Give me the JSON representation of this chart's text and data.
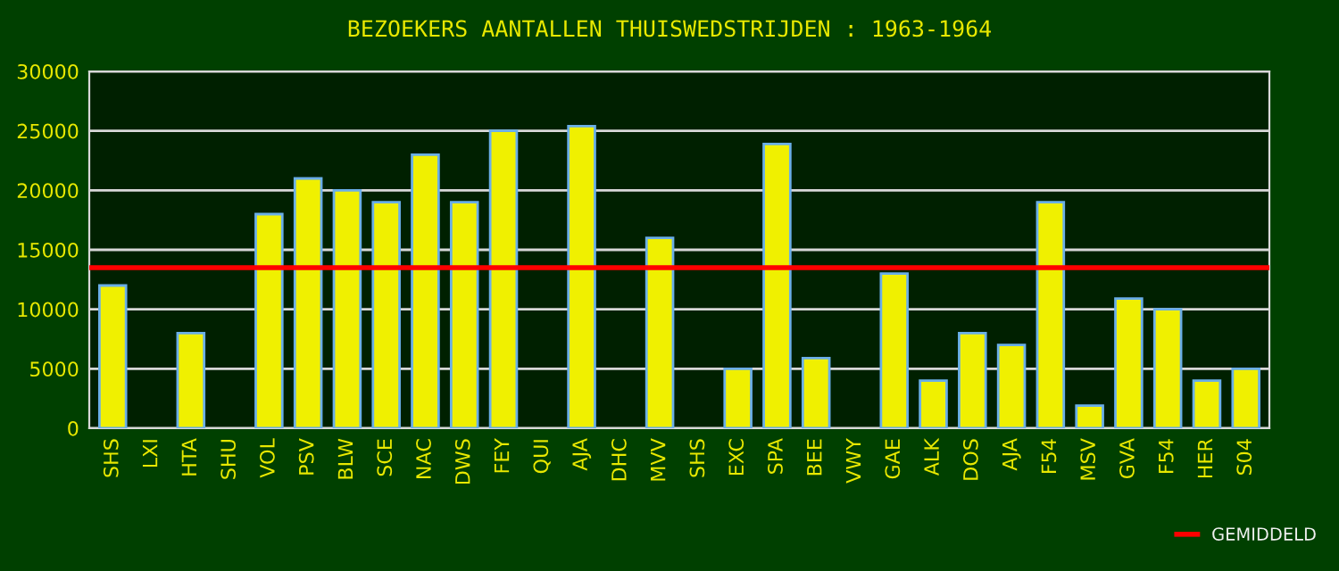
{
  "chart_data": {
    "type": "bar",
    "title": "BEZOEKERS AANTALLEN THUISWEDSTRIJDEN : 1963-1964",
    "categories": [
      "SHS",
      "LXI",
      "HTA",
      "SHU",
      "VOL",
      "PSV",
      "BLW",
      "SCE",
      "NAC",
      "DWS",
      "FEY",
      "QUI",
      "AJA",
      "DHC",
      "MVV",
      "SHS",
      "EXC",
      "SPA",
      "BEE",
      "VWY",
      "GAE",
      "ALK",
      "DOS",
      "AJA",
      "F54",
      "MSV",
      "GVA",
      "F54",
      "HER",
      "S04"
    ],
    "values": [
      12000,
      null,
      8000,
      null,
      18000,
      21000,
      20000,
      19000,
      23000,
      19000,
      25000,
      null,
      25400,
      null,
      16000,
      null,
      5000,
      23900,
      5900,
      null,
      13000,
      4000,
      8000,
      7000,
      19000,
      1900,
      10900,
      10000,
      4000,
      5000
    ],
    "color": "#f0f000",
    "ylim": [
      0,
      30000
    ],
    "yticks": [
      0,
      5000,
      10000,
      15000,
      20000,
      25000,
      30000
    ],
    "grid": "y",
    "ref_lines": [
      {
        "axis": "y",
        "value": 13500,
        "label": "GEMIDDELD",
        "color": "#ff0000"
      }
    ],
    "legend": "bottom right"
  }
}
